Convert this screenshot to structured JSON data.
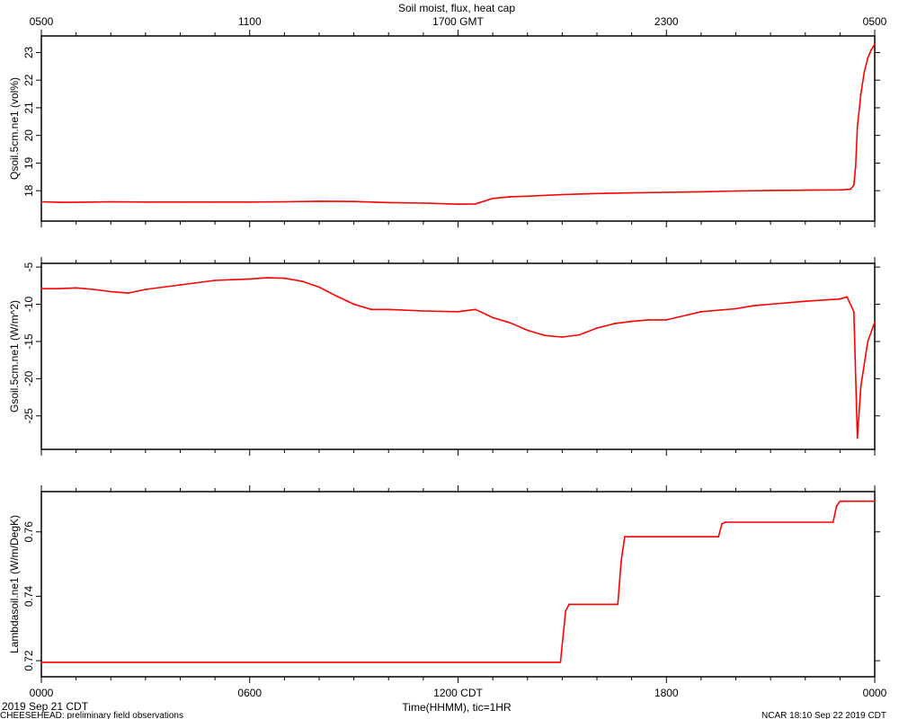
{
  "title": "Soil moist, flux, heat cap",
  "footer_left": "CHEESEHEAD: preliminary field observations",
  "footer_right": "NCAR 18:10 Sep 22 2019 CDT",
  "date_label": "2019 Sep 21 CDT",
  "xlabel": "Time(HHMM), tic=1HR",
  "line_color": "#ff0000",
  "top_axis_labels": [
    "0500",
    "1100",
    "1700 GMT",
    "2300",
    "0500"
  ],
  "bottom_axis_labels": [
    "0000",
    "0600",
    "1200 CDT",
    "1800",
    "0000"
  ],
  "chart_data": [
    {
      "type": "line",
      "ylabel": "Qsoil.5cm.ne1 (vol%)",
      "x_units": "hours since 0000 CDT",
      "xlim": [
        0,
        24
      ],
      "ylim": [
        16.9,
        23.6
      ],
      "yticks": [
        18,
        19,
        20,
        21,
        22,
        23
      ],
      "x": [
        0,
        0.5,
        1,
        1.5,
        2,
        3,
        4,
        5,
        6,
        7,
        8,
        9,
        10,
        11,
        11.5,
        12,
        12.5,
        12.6,
        13,
        13.5,
        14,
        15,
        16,
        17,
        18,
        19,
        20,
        21,
        22,
        23,
        23.3,
        23.4,
        23.45,
        23.5,
        23.6,
        23.7,
        23.8,
        23.9,
        24
      ],
      "values": [
        17.6,
        17.58,
        17.58,
        17.59,
        17.6,
        17.59,
        17.59,
        17.59,
        17.59,
        17.6,
        17.62,
        17.61,
        17.57,
        17.55,
        17.53,
        17.51,
        17.52,
        17.56,
        17.72,
        17.78,
        17.8,
        17.86,
        17.9,
        17.92,
        17.94,
        17.96,
        17.99,
        18.01,
        18.02,
        18.03,
        18.05,
        18.2,
        18.9,
        20.3,
        21.5,
        22.3,
        22.8,
        23.1,
        23.3
      ]
    },
    {
      "type": "line",
      "ylabel": "Gsoil.5cm.ne1 (W/m^2)",
      "x_units": "hours since 0000 CDT",
      "xlim": [
        0,
        24
      ],
      "ylim": [
        -29.5,
        -4.5
      ],
      "yticks": [
        -5,
        -10,
        -15,
        -20,
        -25
      ],
      "x": [
        0,
        0.5,
        1,
        1.5,
        2,
        2.5,
        3,
        4,
        5,
        5.5,
        6,
        6.5,
        7,
        7.5,
        8,
        8.5,
        9,
        9.5,
        10,
        11,
        12,
        12.5,
        13,
        13.5,
        14,
        14.5,
        15,
        15.5,
        16,
        16.5,
        17,
        17.5,
        18,
        19,
        20,
        20.5,
        21,
        22,
        23,
        23.2,
        23.4,
        23.5,
        23.6,
        23.8,
        24
      ],
      "values": [
        -7.9,
        -7.9,
        -7.8,
        -8.0,
        -8.3,
        -8.5,
        -8.0,
        -7.4,
        -6.8,
        -6.7,
        -6.6,
        -6.45,
        -6.5,
        -6.9,
        -7.7,
        -8.9,
        -10.0,
        -10.7,
        -10.7,
        -10.9,
        -11.0,
        -10.7,
        -11.8,
        -12.5,
        -13.5,
        -14.2,
        -14.4,
        -14.1,
        -13.2,
        -12.6,
        -12.3,
        -12.1,
        -12.1,
        -11.0,
        -10.6,
        -10.2,
        -10.0,
        -9.6,
        -9.3,
        -9.0,
        -11.0,
        -28.0,
        -21.0,
        -15.0,
        -12.4
      ]
    },
    {
      "type": "line",
      "ylabel": "Lambdasoil.ne1 (W/m/DegK)",
      "x_units": "hours since 0000 CDT",
      "xlim": [
        0,
        24
      ],
      "ylim": [
        0.715,
        0.7725
      ],
      "yticks": [
        0.72,
        0.74,
        0.76
      ],
      "x": [
        0,
        14.95,
        15.1,
        15.2,
        16.6,
        16.7,
        16.8,
        19.5,
        19.6,
        19.7,
        22.8,
        22.9,
        23.0,
        24
      ],
      "values": [
        0.7195,
        0.7195,
        0.7355,
        0.7375,
        0.7375,
        0.751,
        0.7585,
        0.7585,
        0.7625,
        0.763,
        0.763,
        0.768,
        0.7695,
        0.7695
      ]
    }
  ]
}
